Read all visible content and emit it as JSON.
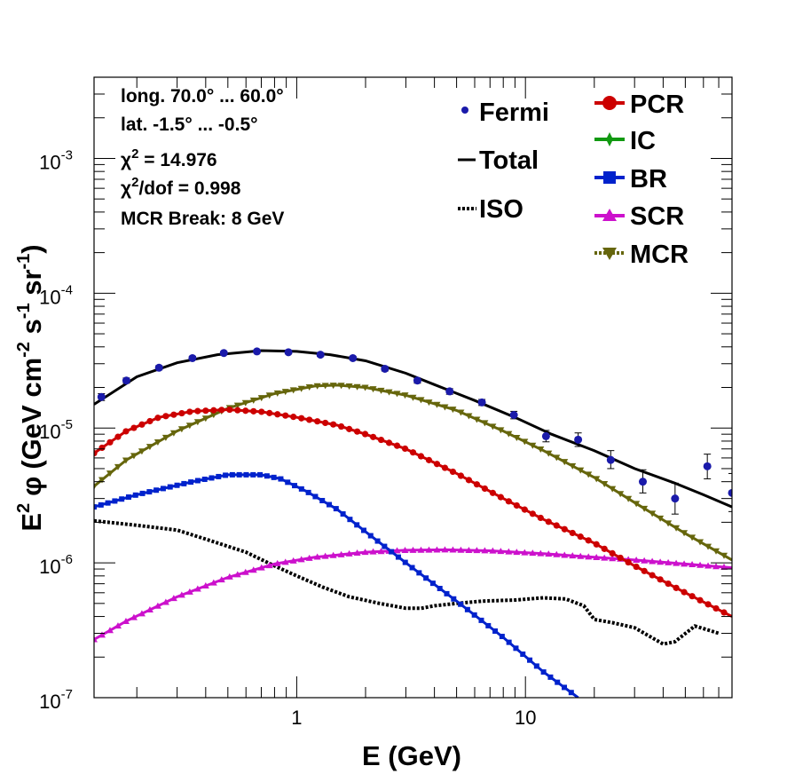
{
  "chart_data": {
    "type": "line",
    "xlabel_main": "E (GeV)",
    "ylabel": {
      "prefix": "E",
      "prefix_sup": "2",
      "phi": "φ",
      "open": "(GeV cm",
      "sup1": "-2",
      "s": " s",
      "sup2": "-1",
      "sr": " sr",
      "sup3": "-1",
      "close": ")"
    },
    "xscale": "log",
    "yscale": "log",
    "xlim": [
      0.13,
      80
    ],
    "ylim": [
      1e-07,
      0.004
    ],
    "x_tick_labels": [
      {
        "value": 1,
        "label": "1"
      },
      {
        "value": 10,
        "label": "10"
      }
    ],
    "y_tick_labels": [
      {
        "value": 1e-07,
        "mant": "10",
        "exp": "-7"
      },
      {
        "value": 1e-06,
        "mant": "10",
        "exp": "-6"
      },
      {
        "value": 1e-05,
        "mant": "10",
        "exp": "-5"
      },
      {
        "value": 0.0001,
        "mant": "10",
        "exp": "-4"
      },
      {
        "value": 0.001,
        "mant": "10",
        "exp": "-3"
      }
    ],
    "info": {
      "long": "long. 70.0° ... 60.0°",
      "lat": "lat. -1.5° ... -0.5°",
      "chi2_sym": "χ",
      "chi2_sup": "2",
      "chi2_val": " = 14.976",
      "chidof_sym": "χ",
      "chidof_sup": "2",
      "chidof_val": "/dof = 0.998",
      "mcr": "MCR Break:  8 GeV"
    },
    "legend": {
      "fermi": "Fermi",
      "total": "Total",
      "iso": "ISO",
      "pcr": "PCR",
      "ic": "IC",
      "br": "BR",
      "scr": "SCR",
      "mcr": "MCR"
    },
    "colors": {
      "fermi": "#1a1aaa",
      "total": "#000000",
      "iso": "#000000",
      "pcr": "#cc0000",
      "ic": "#119911",
      "br": "#0022cc",
      "scr": "#cc11cc",
      "mcr": "#66660c"
    },
    "fermi": [
      {
        "x": 0.14,
        "y": 1.7e-05,
        "err": [
          1.6e-05,
          1.8e-05
        ]
      },
      {
        "x": 0.18,
        "y": 2.25e-05,
        "err": [
          2.15e-05,
          2.35e-05
        ]
      },
      {
        "x": 0.25,
        "y": 2.8e-05,
        "err": [
          2.7e-05,
          2.9e-05
        ]
      },
      {
        "x": 0.35,
        "y": 3.3e-05,
        "err": [
          3.2e-05,
          3.4e-05
        ]
      },
      {
        "x": 0.48,
        "y": 3.6e-05,
        "err": [
          3.5e-05,
          3.7e-05
        ]
      },
      {
        "x": 0.67,
        "y": 3.7e-05,
        "err": [
          3.6e-05,
          3.8e-05
        ]
      },
      {
        "x": 0.92,
        "y": 3.65e-05,
        "err": [
          3.55e-05,
          3.75e-05
        ]
      },
      {
        "x": 1.27,
        "y": 3.5e-05,
        "err": [
          3.4e-05,
          3.6e-05
        ]
      },
      {
        "x": 1.76,
        "y": 3.3e-05,
        "err": [
          3.2e-05,
          3.4e-05
        ]
      },
      {
        "x": 2.43,
        "y": 2.75e-05,
        "err": [
          2.65e-05,
          2.85e-05
        ]
      },
      {
        "x": 3.37,
        "y": 2.25e-05,
        "err": [
          2.15e-05,
          2.35e-05
        ]
      },
      {
        "x": 4.66,
        "y": 1.87e-05,
        "err": [
          1.78e-05,
          1.96e-05
        ]
      },
      {
        "x": 6.45,
        "y": 1.55e-05,
        "err": [
          1.47e-05,
          1.63e-05
        ]
      },
      {
        "x": 8.9,
        "y": 1.25e-05,
        "err": [
          1.17e-05,
          1.33e-05
        ]
      },
      {
        "x": 12.3,
        "y": 8.7e-06,
        "err": [
          7.9e-06,
          9.6e-06
        ]
      },
      {
        "x": 17.0,
        "y": 8.2e-06,
        "err": [
          7.3e-06,
          9.2e-06
        ]
      },
      {
        "x": 23.6,
        "y": 5.8e-06,
        "err": [
          5e-06,
          6.8e-06
        ]
      },
      {
        "x": 32.6,
        "y": 4e-06,
        "err": [
          3.3e-06,
          4.9e-06
        ]
      },
      {
        "x": 45.1,
        "y": 3e-06,
        "err": [
          2.3e-06,
          3.9e-06
        ]
      },
      {
        "x": 62.4,
        "y": 5.2e-06,
        "err": [
          4.2e-06,
          6.4e-06
        ]
      },
      {
        "x": 80.0,
        "y": 3.3e-06,
        "err": [
          2.4e-06,
          4.6e-06
        ]
      }
    ],
    "series": {
      "total": [
        [
          0.13,
          1.5e-05
        ],
        [
          0.2,
          2.4e-05
        ],
        [
          0.3,
          3.05e-05
        ],
        [
          0.45,
          3.5e-05
        ],
        [
          0.7,
          3.75e-05
        ],
        [
          1.0,
          3.7e-05
        ],
        [
          1.4,
          3.5e-05
        ],
        [
          2.0,
          3.15e-05
        ],
        [
          3.0,
          2.55e-05
        ],
        [
          4.0,
          2.1e-05
        ],
        [
          6.0,
          1.6e-05
        ],
        [
          9.0,
          1.2e-05
        ],
        [
          13,
          9e-06
        ],
        [
          20,
          6.8e-06
        ],
        [
          30,
          5e-06
        ],
        [
          45,
          3.9e-06
        ],
        [
          60,
          3.2e-06
        ],
        [
          80,
          2.6e-06
        ]
      ],
      "pcr": [
        [
          0.13,
          6.5e-06
        ],
        [
          0.18,
          9.5e-06
        ],
        [
          0.25,
          1.2e-05
        ],
        [
          0.35,
          1.33e-05
        ],
        [
          0.5,
          1.37e-05
        ],
        [
          0.7,
          1.32e-05
        ],
        [
          1.0,
          1.2e-05
        ],
        [
          1.5,
          1.05e-05
        ],
        [
          2.0,
          9e-06
        ],
        [
          3.0,
          7e-06
        ],
        [
          5.0,
          4.6e-06
        ],
        [
          8.0,
          3e-06
        ],
        [
          12,
          2.1e-06
        ],
        [
          20,
          1.4e-06
        ],
        [
          30,
          9.5e-07
        ],
        [
          50,
          6e-07
        ],
        [
          80,
          4e-07
        ]
      ],
      "mcr": [
        [
          0.13,
          3.7e-06
        ],
        [
          0.18,
          5.8e-06
        ],
        [
          0.3,
          9.5e-06
        ],
        [
          0.5,
          1.4e-05
        ],
        [
          0.8,
          1.8e-05
        ],
        [
          1.2,
          2.05e-05
        ],
        [
          1.5,
          2.08e-05
        ],
        [
          2.0,
          2e-05
        ],
        [
          3.0,
          1.75e-05
        ],
        [
          5.0,
          1.35e-05
        ],
        [
          8.0,
          9.5e-06
        ],
        [
          12,
          6.8e-06
        ],
        [
          20,
          4.3e-06
        ],
        [
          30,
          2.8e-06
        ],
        [
          50,
          1.65e-06
        ],
        [
          80,
          1.05e-06
        ]
      ],
      "br": [
        [
          0.13,
          2.6e-06
        ],
        [
          0.2,
          3.2e-06
        ],
        [
          0.35,
          4e-06
        ],
        [
          0.5,
          4.5e-06
        ],
        [
          0.7,
          4.5e-06
        ],
        [
          0.85,
          4.2e-06
        ],
        [
          1.1,
          3.4e-06
        ],
        [
          1.5,
          2.5e-06
        ],
        [
          2.0,
          1.7e-06
        ],
        [
          3.0,
          1e-06
        ],
        [
          5.0,
          5.2e-07
        ],
        [
          8.0,
          2.8e-07
        ],
        [
          12,
          1.55e-07
        ],
        [
          17,
          1e-07
        ]
      ],
      "scr": [
        [
          0.13,
          2.7e-07
        ],
        [
          0.18,
          3.7e-07
        ],
        [
          0.3,
          5.6e-07
        ],
        [
          0.5,
          7.8e-07
        ],
        [
          0.8,
          9.8e-07
        ],
        [
          1.2,
          1.1e-06
        ],
        [
          2.0,
          1.2e-06
        ],
        [
          3.0,
          1.24e-06
        ],
        [
          4.5,
          1.25e-06
        ],
        [
          7.0,
          1.23e-06
        ],
        [
          12,
          1.17e-06
        ],
        [
          20,
          1.1e-06
        ],
        [
          30,
          1.05e-06
        ],
        [
          50,
          9.8e-07
        ],
        [
          80,
          9.2e-07
        ]
      ],
      "iso": [
        [
          0.13,
          2.05e-06
        ],
        [
          0.15,
          2e-06
        ],
        [
          0.2,
          1.9e-06
        ],
        [
          0.3,
          1.75e-06
        ],
        [
          0.4,
          1.5e-06
        ],
        [
          0.6,
          1.2e-06
        ],
        [
          0.8,
          9.5e-07
        ],
        [
          1.0,
          8e-07
        ],
        [
          1.3,
          6.6e-07
        ],
        [
          1.7,
          5.6e-07
        ],
        [
          2.3,
          5e-07
        ],
        [
          3.0,
          4.6e-07
        ],
        [
          3.5,
          4.6e-07
        ],
        [
          4.0,
          4.8e-07
        ],
        [
          5.0,
          5e-07
        ],
        [
          6.5,
          5.2e-07
        ],
        [
          9.0,
          5.3e-07
        ],
        [
          12,
          5.5e-07
        ],
        [
          15,
          5.4e-07
        ],
        [
          18,
          4.8e-07
        ],
        [
          20,
          3.8e-07
        ],
        [
          24,
          3.6e-07
        ],
        [
          30,
          3.3e-07
        ],
        [
          40,
          2.5e-07
        ],
        [
          45,
          2.6e-07
        ],
        [
          55,
          3.4e-07
        ],
        [
          62,
          3.2e-07
        ],
        [
          70,
          3e-07
        ]
      ]
    }
  }
}
